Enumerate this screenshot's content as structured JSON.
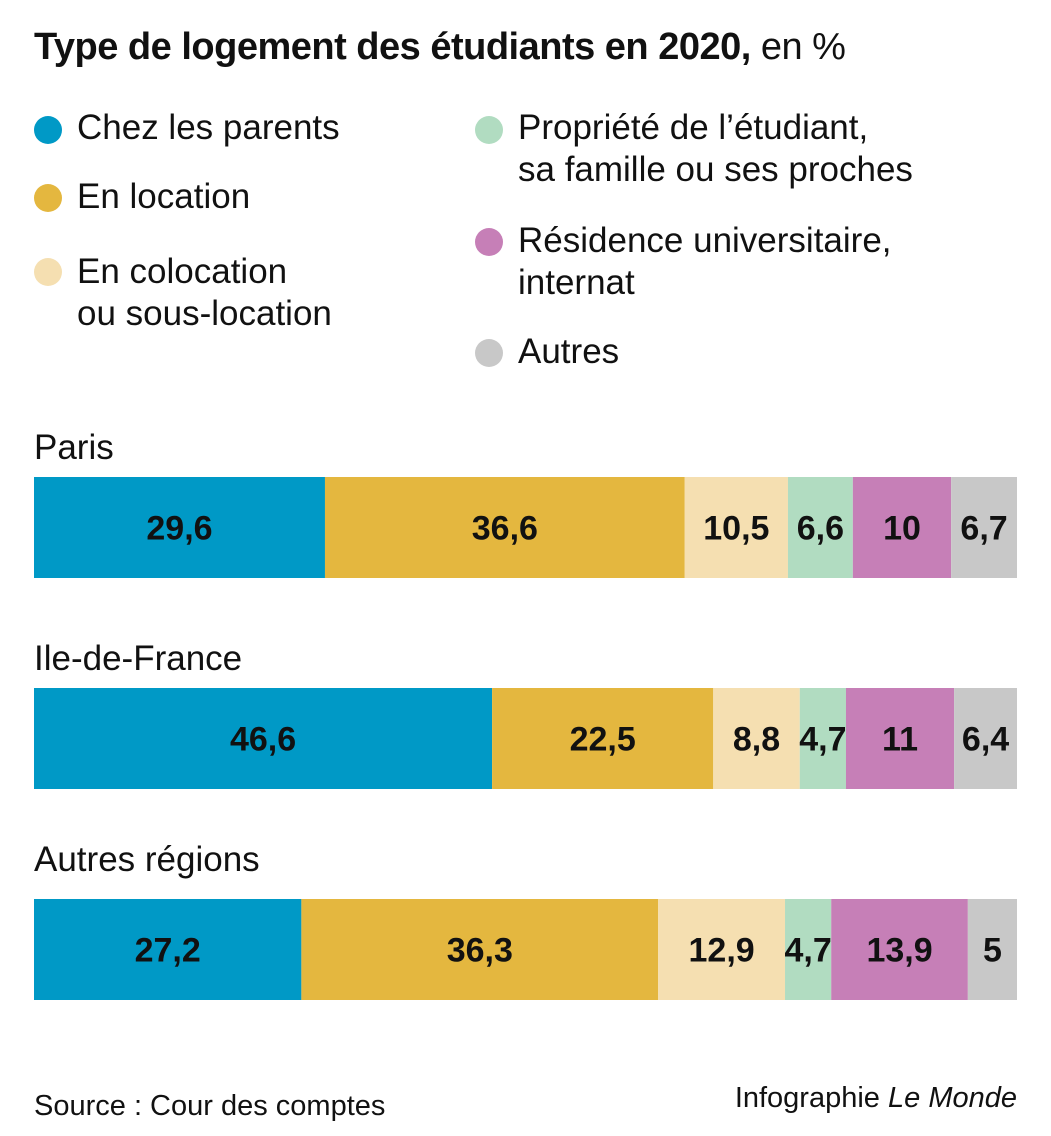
{
  "title": {
    "main": "Type de logement des étudiants en 2020,",
    "sub": "en %"
  },
  "legend": [
    {
      "label": "Chez les parents",
      "color": "#0099c6"
    },
    {
      "label": "En location",
      "color": "#e4b73f"
    },
    {
      "label": "En colocation\nou sous-location",
      "color": "#f5dfb1"
    },
    {
      "label": "Propriété de l’étudiant,\nsa famille ou ses proches",
      "color": "#b1dcc1"
    },
    {
      "label": "Résidence universitaire,\ninternat",
      "color": "#c67fb7"
    },
    {
      "label": "Autres",
      "color": "#c8c8c8"
    }
  ],
  "chart_data": {
    "type": "bar",
    "orientation": "horizontal",
    "stacked": true,
    "categories": [
      "Paris",
      "Ile-de-France",
      "Autres régions"
    ],
    "series": [
      {
        "name": "Chez les parents",
        "values": [
          29.6,
          46.6,
          27.2
        ],
        "labels": [
          "29,6",
          "46,6",
          "27,2"
        ],
        "color": "#0099c6"
      },
      {
        "name": "En location",
        "values": [
          36.6,
          22.5,
          36.3
        ],
        "labels": [
          "36,6",
          "22,5",
          "36,3"
        ],
        "color": "#e4b73f"
      },
      {
        "name": "En colocation ou sous-location",
        "values": [
          10.5,
          8.8,
          12.9
        ],
        "labels": [
          "10,5",
          "8,8",
          "12,9"
        ],
        "color": "#f5dfb1"
      },
      {
        "name": "Propriété de l’étudiant, sa famille ou ses proches",
        "values": [
          6.6,
          4.7,
          4.7
        ],
        "labels": [
          "6,6",
          "4,7",
          "4,7"
        ],
        "color": "#b1dcc1"
      },
      {
        "name": "Résidence universitaire, internat",
        "values": [
          10,
          11,
          13.9
        ],
        "labels": [
          "10",
          "11",
          "13,9"
        ],
        "color": "#c67fb7"
      },
      {
        "name": "Autres",
        "values": [
          6.7,
          6.4,
          5
        ],
        "labels": [
          "6,7",
          "6,4",
          "5"
        ],
        "color": "#c8c8c8"
      }
    ],
    "xlim": [
      0,
      100
    ],
    "grid": false,
    "legend_position": "top"
  },
  "footer": {
    "source": "Source : Cour des comptes",
    "credit_prefix": "Infographie",
    "credit_brand": "Le Monde"
  }
}
